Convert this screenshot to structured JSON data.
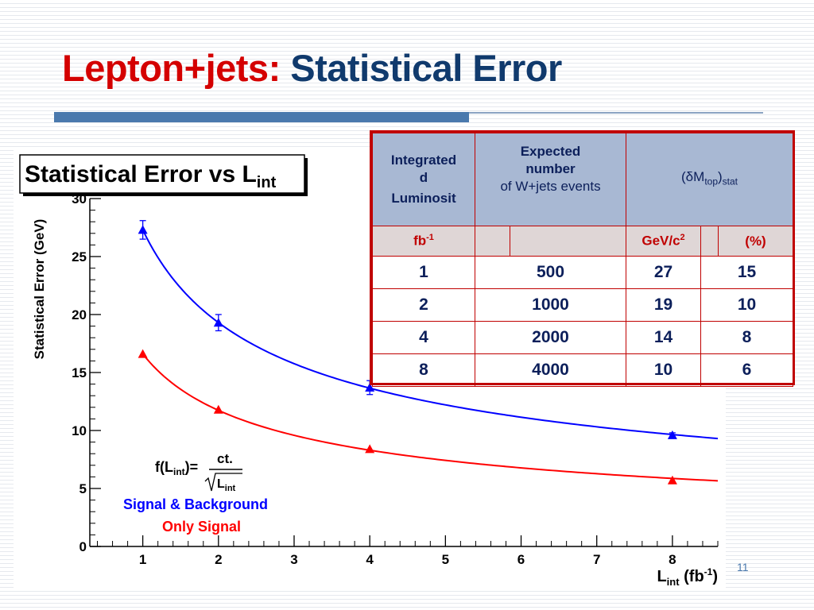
{
  "slide": {
    "title_part1": "Lepton+jets:",
    "title_part2": "Statistical Error",
    "page_number": "11"
  },
  "chart_data": {
    "type": "scatter",
    "title_main": "Statistical Error vs L",
    "title_sub": "int",
    "ylabel": "Statistical Error (GeV)",
    "xlabel_main": "L",
    "xlabel_sub": "int",
    "xlabel_unit": " (fb",
    "xlabel_unit_sup": "-1",
    "xlabel_close": ")",
    "xlim": [
      0.3,
      8.6
    ],
    "ylim": [
      0,
      30
    ],
    "x_ticks": [
      1,
      2,
      3,
      4,
      5,
      6,
      7,
      8
    ],
    "y_ticks": [
      0,
      5,
      10,
      15,
      20,
      25,
      30
    ],
    "grid": false,
    "legend_placement": "bottom-left",
    "formula": {
      "lhs": "f(L",
      "lhs_sub": "int",
      "lhs_close": ")=",
      "numerator": "ct.",
      "denominator_main": "L",
      "denominator_sub": "int"
    },
    "series": [
      {
        "name": "Signal & Background",
        "color": "#0000ff",
        "x": [
          1,
          2,
          4,
          8
        ],
        "y": [
          27.3,
          19.3,
          13.7,
          9.6
        ],
        "y_err": [
          0.8,
          0.7,
          0.6,
          0.2
        ],
        "fit_constant": 27.3
      },
      {
        "name": "Only Signal",
        "color": "#ff0000",
        "x": [
          1,
          2,
          4,
          8
        ],
        "y": [
          16.6,
          11.8,
          8.4,
          5.7
        ],
        "y_err": [
          0,
          0,
          0,
          0
        ],
        "fit_constant": 16.6
      }
    ]
  },
  "table": {
    "header": {
      "col1_lines": [
        "Integrated",
        "d",
        "Luminosit"
      ],
      "col2_lines": [
        "Expected",
        "number",
        "of W+jets events"
      ],
      "col3_main": "(δM",
      "col3_sub1": "top",
      "col3_close": ")",
      "col3_sub2": "stat"
    },
    "units": {
      "lumi_main": "fb",
      "lumi_sup": "-1",
      "mass_main": "GeV/c",
      "mass_sup": "2",
      "percent": "(%)"
    },
    "rows": [
      {
        "lumi": "1",
        "events": "500",
        "gev": "27",
        "pct": "15"
      },
      {
        "lumi": "2",
        "events": "1000",
        "gev": "19",
        "pct": "10"
      },
      {
        "lumi": "4",
        "events": "2000",
        "gev": "14",
        "pct": "8"
      },
      {
        "lumi": "8",
        "events": "4000",
        "gev": "10",
        "pct": "6"
      }
    ]
  },
  "colors": {
    "title_red": "#d40000",
    "title_blue": "#103a6d",
    "table_border": "#c00000",
    "table_header_bg": "#a8b8d3"
  }
}
